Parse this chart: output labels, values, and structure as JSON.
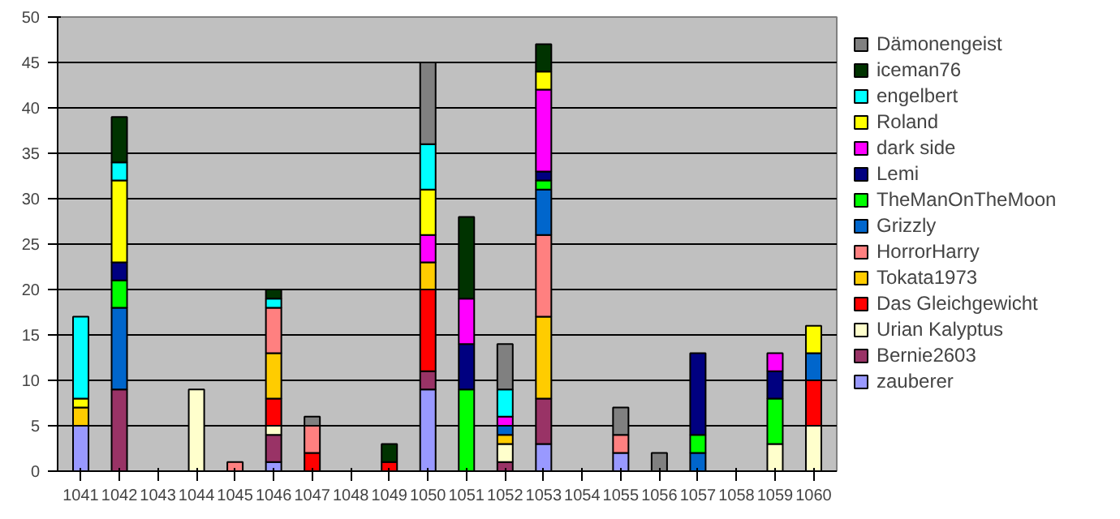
{
  "chart_data": {
    "type": "bar",
    "stacked": true,
    "categories": [
      "1041",
      "1042",
      "1043",
      "1044",
      "1045",
      "1046",
      "1047",
      "1048",
      "1049",
      "1050",
      "1051",
      "1052",
      "1053",
      "1054",
      "1055",
      "1056",
      "1057",
      "1058",
      "1059",
      "1060"
    ],
    "ylim": [
      0,
      50
    ],
    "yticks": [
      0,
      5,
      10,
      15,
      20,
      25,
      30,
      35,
      40,
      45,
      50
    ],
    "grid": "y",
    "legend": "right",
    "series": [
      {
        "name": "zauberer",
        "color": "#9999ff",
        "values": [
          5,
          null,
          null,
          null,
          null,
          1,
          null,
          null,
          null,
          9,
          null,
          null,
          3,
          null,
          2,
          null,
          null,
          null,
          null,
          null
        ]
      },
      {
        "name": "Bernie2603",
        "color": "#993366",
        "values": [
          null,
          9,
          null,
          null,
          null,
          3,
          null,
          null,
          null,
          2,
          null,
          1,
          5,
          null,
          null,
          null,
          null,
          null,
          null,
          null
        ]
      },
      {
        "name": "Urian Kalyptus",
        "color": "#ffffcc",
        "values": [
          null,
          null,
          null,
          9,
          null,
          1,
          null,
          null,
          null,
          null,
          null,
          2,
          null,
          null,
          null,
          null,
          null,
          null,
          3,
          5
        ]
      },
      {
        "name": "Das Gleichgewicht",
        "color": "#ff0000",
        "values": [
          null,
          null,
          null,
          null,
          null,
          3,
          2,
          null,
          1,
          9,
          null,
          null,
          null,
          null,
          null,
          null,
          null,
          null,
          null,
          5
        ]
      },
      {
        "name": "Tokata1973",
        "color": "#ffcc00",
        "values": [
          2,
          null,
          null,
          null,
          null,
          5,
          null,
          null,
          null,
          3,
          null,
          1,
          9,
          null,
          null,
          null,
          null,
          null,
          null,
          null
        ]
      },
      {
        "name": "HorrorHarry",
        "color": "#ff8080",
        "values": [
          null,
          null,
          null,
          null,
          1,
          5,
          3,
          null,
          null,
          null,
          null,
          null,
          9,
          null,
          2,
          null,
          null,
          null,
          null,
          null
        ]
      },
      {
        "name": "Grizzly",
        "color": "#0066cc",
        "values": [
          null,
          9,
          null,
          null,
          null,
          null,
          null,
          null,
          null,
          null,
          null,
          1,
          5,
          null,
          null,
          null,
          2,
          null,
          null,
          3
        ]
      },
      {
        "name": "TheManOnTheMoon",
        "color": "#00ff00",
        "values": [
          null,
          3,
          null,
          null,
          null,
          null,
          null,
          null,
          null,
          null,
          9,
          null,
          1,
          null,
          null,
          null,
          2,
          null,
          5,
          null
        ]
      },
      {
        "name": "Lemi",
        "color": "#000080",
        "values": [
          null,
          2,
          null,
          null,
          null,
          null,
          null,
          null,
          null,
          null,
          5,
          null,
          1,
          null,
          null,
          null,
          9,
          null,
          3,
          null
        ]
      },
      {
        "name": "dark side",
        "color": "#ff00ff",
        "values": [
          null,
          null,
          null,
          null,
          null,
          null,
          null,
          null,
          null,
          3,
          5,
          1,
          9,
          null,
          null,
          null,
          null,
          null,
          2,
          null
        ]
      },
      {
        "name": "Roland",
        "color": "#ffff00",
        "values": [
          1,
          9,
          null,
          null,
          null,
          null,
          null,
          null,
          null,
          5,
          null,
          null,
          2,
          null,
          null,
          null,
          null,
          null,
          null,
          3
        ]
      },
      {
        "name": "engelbert",
        "color": "#00ffff",
        "values": [
          9,
          2,
          null,
          null,
          null,
          1,
          null,
          null,
          null,
          5,
          null,
          3,
          null,
          null,
          null,
          null,
          null,
          null,
          null,
          null
        ]
      },
      {
        "name": "iceman76",
        "color": "#003300",
        "values": [
          null,
          5,
          null,
          null,
          null,
          1,
          null,
          null,
          2,
          null,
          9,
          null,
          3,
          null,
          null,
          null,
          null,
          null,
          null,
          null
        ]
      },
      {
        "name": "Dämonengeist",
        "color": "#808080",
        "values": [
          null,
          null,
          null,
          null,
          null,
          null,
          1,
          null,
          null,
          9,
          null,
          5,
          null,
          null,
          3,
          2,
          null,
          null,
          null,
          null
        ]
      }
    ]
  }
}
